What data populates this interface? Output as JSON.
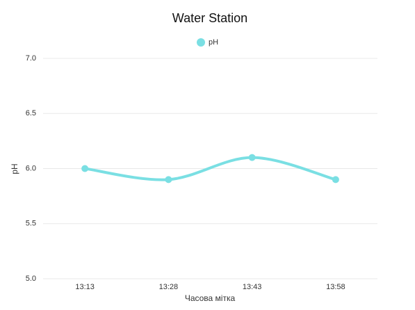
{
  "chart_data": {
    "type": "line",
    "title": "Water Station",
    "x_label": "Часова мітка",
    "y_label": "pH",
    "categories": [
      "13:13",
      "13:28",
      "13:43",
      "13:58"
    ],
    "series": [
      {
        "name": "pH",
        "color": "#7adfe3",
        "values": [
          6.0,
          5.9,
          6.1,
          5.9
        ]
      }
    ],
    "ylim": [
      5,
      7
    ],
    "yticks": [
      {
        "value": 5,
        "label": "5.0"
      },
      5.5,
      {
        "value": 6,
        "label": "6.0"
      },
      6.5,
      {
        "value": 7,
        "label": "7.0"
      }
    ],
    "grid": true,
    "smooth": true,
    "legend": "top"
  }
}
